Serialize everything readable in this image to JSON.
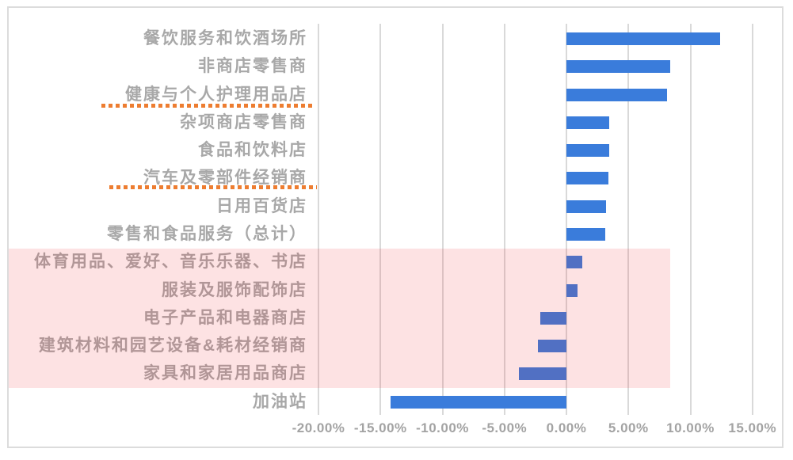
{
  "chart_data": {
    "type": "bar",
    "orientation": "horizontal",
    "title": "",
    "xlabel": "",
    "ylabel": "",
    "categories": [
      "餐饮服务和饮酒场所",
      "非商店零售商",
      "健康与个人护理用品店",
      "杂项商店零售商",
      "食品和饮料店",
      "汽车及零部件经销商",
      "日用百货店",
      "零售和食品服务（总计）",
      "体育用品、爱好、音乐乐器、书店",
      "服装及服饰配饰店",
      "电子产品和电器商店",
      "建筑材料和园艺设备&耗材经销商",
      "家具和家居用品商店",
      "加油站"
    ],
    "values": [
      12.4,
      8.4,
      8.1,
      3.45,
      3.45,
      3.4,
      3.2,
      3.1,
      1.25,
      0.9,
      -2.1,
      -2.3,
      -3.85,
      -14.2
    ],
    "unit": "%",
    "xlim": [
      -20,
      15
    ],
    "x_tick_step": 5,
    "x_tick_labels": [
      "-20.00%",
      "-15.00%",
      "-10.00%",
      "-5.00%",
      "0.00%",
      "5.00%",
      "10.00%",
      "15.00%"
    ],
    "grid": "vertical-only",
    "legend": "none",
    "colors": {
      "bar": "#3A7CDB",
      "gridline": "#D9D9D9",
      "frame_border": "#DCDCDC",
      "category_label": "#A8A8A8",
      "axis_label": "#A3A3A3",
      "annotation_orange": "#ED7D31",
      "highlight_fill": "rgba(237,28,36,0.13)"
    },
    "annotations": {
      "highlighted_categories": [
        "体育用品、爱好、音乐乐器、书店",
        "服装及服饰配饰店",
        "电子产品和电器商店",
        "建筑材料和园艺设备&耗材经销商",
        "家具和家居用品商店"
      ],
      "underlined_categories": [
        "健康与个人护理用品店",
        "汽车及零部件经销商"
      ]
    }
  }
}
